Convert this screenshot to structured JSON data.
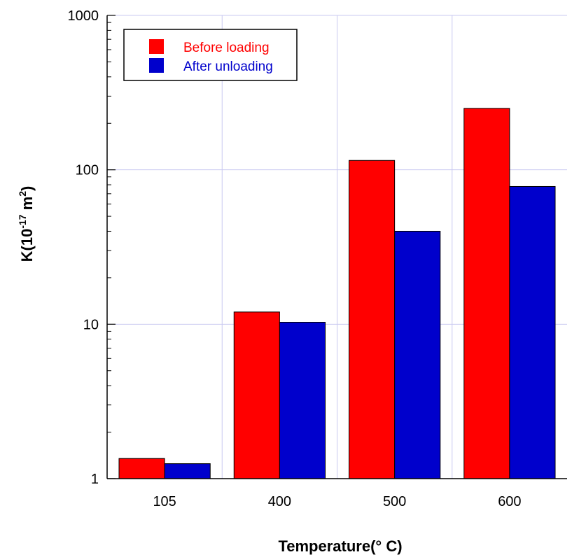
{
  "chart_data": {
    "type": "bar",
    "categories": [
      "105",
      "400",
      "500",
      "600"
    ],
    "series": [
      {
        "name": "Before loading",
        "values": [
          1.35,
          12.0,
          115,
          250
        ],
        "color": "#ff0000"
      },
      {
        "name": "After unloading",
        "values": [
          1.25,
          10.3,
          40,
          78
        ],
        "color": "#0000cc"
      }
    ],
    "xlabel": "Temperature(° C)",
    "ylabel": {
      "prefix": "K(10",
      "exp1": "-17",
      "mid": " m",
      "exp2": "2",
      "suffix": ")"
    },
    "yscale": "log",
    "ylim": [
      1,
      1000
    ],
    "yticks": [
      {
        "value": 1,
        "label": "1"
      },
      {
        "value": 10,
        "label": "10"
      },
      {
        "value": 100,
        "label": "100"
      },
      {
        "value": 1000,
        "label": "1000"
      }
    ],
    "grid": true,
    "grid_color": "#c8c8f0",
    "legend_position": "top-left"
  }
}
